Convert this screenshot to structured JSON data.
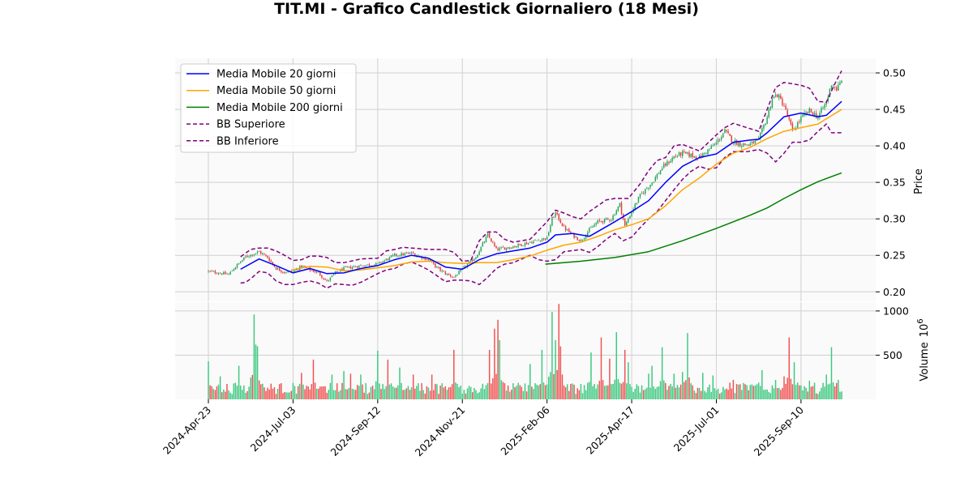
{
  "chart_data": {
    "type": "candlestick",
    "title": "TIT.MI - Grafico Candlestick Giornaliero (18 Mesi)",
    "price_panel": {
      "ylabel": "Price",
      "ylim": [
        0.187,
        0.52
      ],
      "yticks": [
        "0.20",
        "0.25",
        "0.30",
        "0.35",
        "0.40",
        "0.45",
        "0.50"
      ],
      "ytick_values": [
        0.2,
        0.25,
        0.3,
        0.35,
        0.4,
        0.45,
        0.5
      ],
      "grid": true,
      "legend_position": "top-left"
    },
    "volume_panel": {
      "ylabel": "Volume",
      "ylabel_exponent": "10",
      "ylabel_exponent_power": "6",
      "ylim": [
        0,
        1100
      ],
      "yticks": [
        "500",
        "1000"
      ],
      "ytick_values": [
        500,
        1000
      ],
      "grid": true
    },
    "x_dates": [
      "2024-Apr-23",
      "2024-Jul-03",
      "2024-Sep-12",
      "2024-Nov-21",
      "2025-Feb-06",
      "2025-Apr-17",
      "2025-Jul-01",
      "2025-Sep-10"
    ],
    "x_tick_index": [
      0,
      50,
      100,
      150,
      200,
      250,
      300,
      350
    ],
    "n_sessions": 375,
    "legend": [
      {
        "label": "Media Mobile 20 giorni",
        "color": "#0000ff",
        "style": "solid"
      },
      {
        "label": "Media Mobile 50 giorni",
        "color": "#ffa500",
        "style": "solid"
      },
      {
        "label": "Media Mobile 200 giorni",
        "color": "#008000",
        "style": "solid"
      },
      {
        "label": "BB Superiore",
        "color": "#800080",
        "style": "dashed"
      },
      {
        "label": "BB Inferiore",
        "color": "#800080",
        "style": "dashed"
      }
    ],
    "colors": {
      "up": "#26a65b",
      "down": "#e63c3c",
      "volume_up": "#3cc87e",
      "volume_down": "#f05050"
    },
    "price_anchors": [
      [
        0,
        0.228
      ],
      [
        12,
        0.224
      ],
      [
        15,
        0.232
      ],
      [
        22,
        0.248
      ],
      [
        30,
        0.255
      ],
      [
        35,
        0.247
      ],
      [
        40,
        0.232
      ],
      [
        45,
        0.227
      ],
      [
        50,
        0.228
      ],
      [
        55,
        0.235
      ],
      [
        60,
        0.23
      ],
      [
        65,
        0.226
      ],
      [
        70,
        0.214
      ],
      [
        75,
        0.226
      ],
      [
        80,
        0.232
      ],
      [
        90,
        0.236
      ],
      [
        100,
        0.238
      ],
      [
        110,
        0.25
      ],
      [
        120,
        0.253
      ],
      [
        130,
        0.244
      ],
      [
        135,
        0.233
      ],
      [
        140,
        0.225
      ],
      [
        145,
        0.22
      ],
      [
        150,
        0.231
      ],
      [
        158,
        0.248
      ],
      [
        165,
        0.278
      ],
      [
        170,
        0.258
      ],
      [
        180,
        0.262
      ],
      [
        190,
        0.268
      ],
      [
        200,
        0.274
      ],
      [
        203,
        0.3
      ],
      [
        205,
        0.308
      ],
      [
        210,
        0.288
      ],
      [
        215,
        0.278
      ],
      [
        220,
        0.27
      ],
      [
        225,
        0.285
      ],
      [
        230,
        0.296
      ],
      [
        238,
        0.3
      ],
      [
        243,
        0.32
      ],
      [
        246,
        0.29
      ],
      [
        250,
        0.31
      ],
      [
        255,
        0.332
      ],
      [
        262,
        0.35
      ],
      [
        268,
        0.37
      ],
      [
        275,
        0.385
      ],
      [
        280,
        0.39
      ],
      [
        290,
        0.384
      ],
      [
        300,
        0.404
      ],
      [
        305,
        0.42
      ],
      [
        310,
        0.406
      ],
      [
        315,
        0.402
      ],
      [
        320,
        0.402
      ],
      [
        325,
        0.408
      ],
      [
        330,
        0.44
      ],
      [
        333,
        0.465
      ],
      [
        336,
        0.47
      ],
      [
        340,
        0.455
      ],
      [
        345,
        0.42
      ],
      [
        350,
        0.438
      ],
      [
        355,
        0.448
      ],
      [
        360,
        0.44
      ],
      [
        365,
        0.46
      ],
      [
        368,
        0.485
      ],
      [
        371,
        0.478
      ],
      [
        374,
        0.488
      ]
    ],
    "ma20": [
      [
        19,
        0.231
      ],
      [
        30,
        0.245
      ],
      [
        40,
        0.236
      ],
      [
        50,
        0.226
      ],
      [
        60,
        0.232
      ],
      [
        70,
        0.225
      ],
      [
        80,
        0.226
      ],
      [
        90,
        0.232
      ],
      [
        100,
        0.236
      ],
      [
        110,
        0.244
      ],
      [
        120,
        0.25
      ],
      [
        130,
        0.246
      ],
      [
        140,
        0.234
      ],
      [
        150,
        0.231
      ],
      [
        160,
        0.244
      ],
      [
        170,
        0.252
      ],
      [
        180,
        0.256
      ],
      [
        190,
        0.26
      ],
      [
        200,
        0.268
      ],
      [
        205,
        0.278
      ],
      [
        215,
        0.28
      ],
      [
        225,
        0.276
      ],
      [
        240,
        0.296
      ],
      [
        250,
        0.31
      ],
      [
        260,
        0.325
      ],
      [
        270,
        0.35
      ],
      [
        280,
        0.372
      ],
      [
        290,
        0.384
      ],
      [
        300,
        0.389
      ],
      [
        310,
        0.405
      ],
      [
        320,
        0.408
      ],
      [
        325,
        0.409
      ],
      [
        330,
        0.418
      ],
      [
        340,
        0.44
      ],
      [
        350,
        0.445
      ],
      [
        360,
        0.44
      ],
      [
        365,
        0.442
      ],
      [
        374,
        0.461
      ]
    ],
    "ma50": [
      [
        49,
        0.23
      ],
      [
        60,
        0.235
      ],
      [
        70,
        0.234
      ],
      [
        80,
        0.229
      ],
      [
        90,
        0.23
      ],
      [
        100,
        0.233
      ],
      [
        110,
        0.236
      ],
      [
        120,
        0.241
      ],
      [
        130,
        0.242
      ],
      [
        140,
        0.24
      ],
      [
        150,
        0.239
      ],
      [
        160,
        0.24
      ],
      [
        170,
        0.24
      ],
      [
        180,
        0.244
      ],
      [
        190,
        0.249
      ],
      [
        200,
        0.257
      ],
      [
        210,
        0.264
      ],
      [
        220,
        0.268
      ],
      [
        230,
        0.276
      ],
      [
        240,
        0.285
      ],
      [
        250,
        0.292
      ],
      [
        260,
        0.3
      ],
      [
        270,
        0.318
      ],
      [
        280,
        0.34
      ],
      [
        290,
        0.356
      ],
      [
        300,
        0.375
      ],
      [
        310,
        0.39
      ],
      [
        320,
        0.398
      ],
      [
        330,
        0.41
      ],
      [
        340,
        0.42
      ],
      [
        350,
        0.425
      ],
      [
        360,
        0.43
      ],
      [
        374,
        0.45
      ]
    ],
    "ma200": [
      [
        199,
        0.238
      ],
      [
        220,
        0.242
      ],
      [
        240,
        0.247
      ],
      [
        260,
        0.255
      ],
      [
        280,
        0.27
      ],
      [
        300,
        0.287
      ],
      [
        320,
        0.305
      ],
      [
        330,
        0.315
      ],
      [
        340,
        0.328
      ],
      [
        350,
        0.34
      ],
      [
        360,
        0.351
      ],
      [
        374,
        0.363
      ]
    ],
    "bb_upper": [
      [
        19,
        0.248
      ],
      [
        25,
        0.258
      ],
      [
        30,
        0.26
      ],
      [
        35,
        0.26
      ],
      [
        40,
        0.256
      ],
      [
        45,
        0.25
      ],
      [
        50,
        0.243
      ],
      [
        55,
        0.244
      ],
      [
        60,
        0.249
      ],
      [
        65,
        0.249
      ],
      [
        70,
        0.247
      ],
      [
        75,
        0.24
      ],
      [
        80,
        0.24
      ],
      [
        90,
        0.245
      ],
      [
        100,
        0.246
      ],
      [
        105,
        0.256
      ],
      [
        110,
        0.258
      ],
      [
        115,
        0.261
      ],
      [
        120,
        0.26
      ],
      [
        130,
        0.258
      ],
      [
        140,
        0.258
      ],
      [
        145,
        0.254
      ],
      [
        150,
        0.242
      ],
      [
        155,
        0.243
      ],
      [
        160,
        0.27
      ],
      [
        165,
        0.282
      ],
      [
        170,
        0.282
      ],
      [
        175,
        0.272
      ],
      [
        180,
        0.268
      ],
      [
        190,
        0.272
      ],
      [
        200,
        0.296
      ],
      [
        205,
        0.312
      ],
      [
        210,
        0.308
      ],
      [
        215,
        0.303
      ],
      [
        220,
        0.3
      ],
      [
        225,
        0.31
      ],
      [
        235,
        0.326
      ],
      [
        240,
        0.328
      ],
      [
        248,
        0.328
      ],
      [
        255,
        0.348
      ],
      [
        260,
        0.366
      ],
      [
        265,
        0.38
      ],
      [
        270,
        0.384
      ],
      [
        275,
        0.4
      ],
      [
        280,
        0.402
      ],
      [
        290,
        0.393
      ],
      [
        300,
        0.415
      ],
      [
        305,
        0.425
      ],
      [
        310,
        0.431
      ],
      [
        318,
        0.425
      ],
      [
        325,
        0.42
      ],
      [
        330,
        0.45
      ],
      [
        335,
        0.48
      ],
      [
        340,
        0.487
      ],
      [
        345,
        0.485
      ],
      [
        350,
        0.483
      ],
      [
        355,
        0.479
      ],
      [
        360,
        0.461
      ],
      [
        365,
        0.46
      ],
      [
        370,
        0.485
      ],
      [
        374,
        0.503
      ]
    ],
    "bb_lower": [
      [
        19,
        0.212
      ],
      [
        22,
        0.213
      ],
      [
        25,
        0.218
      ],
      [
        30,
        0.228
      ],
      [
        35,
        0.226
      ],
      [
        40,
        0.215
      ],
      [
        45,
        0.21
      ],
      [
        50,
        0.21
      ],
      [
        55,
        0.213
      ],
      [
        60,
        0.215
      ],
      [
        65,
        0.212
      ],
      [
        70,
        0.205
      ],
      [
        75,
        0.211
      ],
      [
        80,
        0.21
      ],
      [
        85,
        0.209
      ],
      [
        90,
        0.213
      ],
      [
        100,
        0.225
      ],
      [
        105,
        0.23
      ],
      [
        110,
        0.232
      ],
      [
        115,
        0.238
      ],
      [
        120,
        0.241
      ],
      [
        125,
        0.236
      ],
      [
        130,
        0.23
      ],
      [
        140,
        0.214
      ],
      [
        145,
        0.216
      ],
      [
        150,
        0.216
      ],
      [
        155,
        0.215
      ],
      [
        160,
        0.21
      ],
      [
        165,
        0.22
      ],
      [
        170,
        0.232
      ],
      [
        175,
        0.238
      ],
      [
        180,
        0.24
      ],
      [
        190,
        0.25
      ],
      [
        195,
        0.244
      ],
      [
        200,
        0.242
      ],
      [
        205,
        0.244
      ],
      [
        210,
        0.255
      ],
      [
        220,
        0.258
      ],
      [
        225,
        0.254
      ],
      [
        230,
        0.262
      ],
      [
        235,
        0.272
      ],
      [
        240,
        0.28
      ],
      [
        245,
        0.27
      ],
      [
        250,
        0.275
      ],
      [
        255,
        0.288
      ],
      [
        260,
        0.3
      ],
      [
        265,
        0.31
      ],
      [
        270,
        0.325
      ],
      [
        275,
        0.34
      ],
      [
        280,
        0.354
      ],
      [
        285,
        0.365
      ],
      [
        290,
        0.372
      ],
      [
        295,
        0.368
      ],
      [
        300,
        0.37
      ],
      [
        305,
        0.384
      ],
      [
        310,
        0.392
      ],
      [
        318,
        0.392
      ],
      [
        325,
        0.395
      ],
      [
        330,
        0.39
      ],
      [
        335,
        0.378
      ],
      [
        340,
        0.39
      ],
      [
        345,
        0.405
      ],
      [
        350,
        0.405
      ],
      [
        355,
        0.408
      ],
      [
        360,
        0.42
      ],
      [
        365,
        0.43
      ],
      [
        368,
        0.418
      ],
      [
        374,
        0.418
      ]
    ],
    "volume_spikes": [
      [
        0,
        430
      ],
      [
        7,
        260
      ],
      [
        18,
        380
      ],
      [
        27,
        960
      ],
      [
        28,
        620
      ],
      [
        29,
        600
      ],
      [
        55,
        300
      ],
      [
        62,
        450
      ],
      [
        73,
        280
      ],
      [
        80,
        320
      ],
      [
        84,
        290
      ],
      [
        90,
        280
      ],
      [
        100,
        550
      ],
      [
        106,
        450
      ],
      [
        113,
        360
      ],
      [
        121,
        280
      ],
      [
        132,
        280
      ],
      [
        145,
        560
      ],
      [
        166,
        560
      ],
      [
        169,
        800
      ],
      [
        171,
        900
      ],
      [
        172,
        670
      ],
      [
        190,
        400
      ],
      [
        197,
        560
      ],
      [
        203,
        990
      ],
      [
        205,
        670
      ],
      [
        207,
        1080
      ],
      [
        208,
        600
      ],
      [
        226,
        530
      ],
      [
        232,
        700
      ],
      [
        237,
        460
      ],
      [
        241,
        760
      ],
      [
        246,
        560
      ],
      [
        248,
        420
      ],
      [
        260,
        290
      ],
      [
        262,
        380
      ],
      [
        268,
        590
      ],
      [
        275,
        290
      ],
      [
        280,
        310
      ],
      [
        283,
        750
      ],
      [
        292,
        300
      ],
      [
        298,
        270
      ],
      [
        310,
        220
      ],
      [
        318,
        160
      ],
      [
        327,
        330
      ],
      [
        335,
        220
      ],
      [
        340,
        260
      ],
      [
        343,
        700
      ],
      [
        346,
        420
      ],
      [
        355,
        210
      ],
      [
        365,
        280
      ],
      [
        368,
        590
      ],
      [
        372,
        220
      ]
    ]
  }
}
